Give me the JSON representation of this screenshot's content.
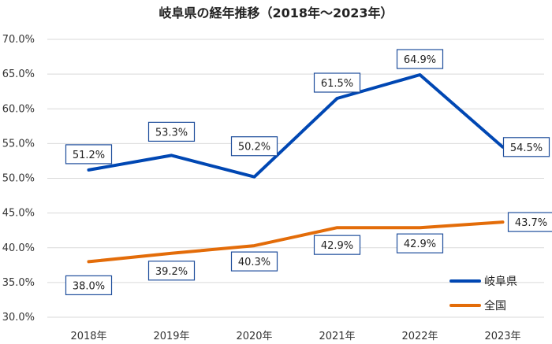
{
  "chart_data": {
    "type": "line",
    "title": "岐阜県の経年推移（2018年～2023年）",
    "categories": [
      "2018年",
      "2019年",
      "2020年",
      "2021年",
      "2022年",
      "2023年"
    ],
    "y_ticks": [
      "30.0%",
      "35.0%",
      "40.0%",
      "45.0%",
      "50.0%",
      "55.0%",
      "60.0%",
      "65.0%",
      "70.0%"
    ],
    "ylim": [
      30,
      70
    ],
    "grid": true,
    "legend_position": "bottom-right",
    "series": [
      {
        "name": "岐阜県",
        "color": "#0047b3",
        "values": [
          51.2,
          53.3,
          50.2,
          61.5,
          64.9,
          54.5
        ],
        "labels": [
          "51.2%",
          "53.3%",
          "50.2%",
          "61.5%",
          "64.9%",
          "54.5%"
        ]
      },
      {
        "name": "全国",
        "color": "#e36c09",
        "values": [
          38.0,
          39.2,
          40.3,
          42.9,
          42.9,
          43.7
        ],
        "labels": [
          "38.0%",
          "39.2%",
          "40.3%",
          "42.9%",
          "42.9%",
          "43.7%"
        ]
      }
    ]
  }
}
